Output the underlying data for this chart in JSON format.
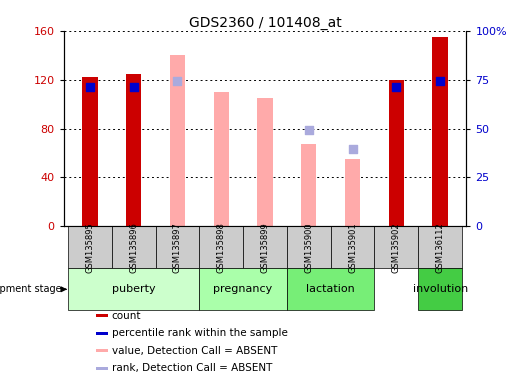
{
  "title": "GDS2360 / 101408_at",
  "samples": [
    "GSM135895",
    "GSM135896",
    "GSM135897",
    "GSM135898",
    "GSM135899",
    "GSM135900",
    "GSM135901",
    "GSM135902",
    "GSM136112"
  ],
  "count_values": [
    122,
    125,
    null,
    null,
    null,
    null,
    null,
    120,
    155
  ],
  "count_color": "#cc0000",
  "percentile_rank": [
    114,
    114,
    null,
    null,
    null,
    null,
    null,
    114,
    119
  ],
  "percentile_rank_color": "#0000cc",
  "value_absent": [
    null,
    null,
    140,
    110,
    105,
    67,
    55,
    null,
    null
  ],
  "value_absent_color": "#ffaaaa",
  "rank_absent": [
    null,
    null,
    119,
    null,
    null,
    79,
    63,
    null,
    null
  ],
  "rank_absent_color": "#aaaadd",
  "ylim_left": [
    0,
    160
  ],
  "ylim_right": [
    0,
    100
  ],
  "yticks_left": [
    0,
    40,
    80,
    120,
    160
  ],
  "yticks_right": [
    0,
    25,
    50,
    75,
    100
  ],
  "yticklabels_right": [
    "0",
    "25",
    "50",
    "75",
    "100%"
  ],
  "bar_width": 0.35,
  "grid_color": "#000000",
  "bg_color": "#ffffff",
  "stage_defs": [
    {
      "label": "puberty",
      "start": 0,
      "end": 2,
      "color": "#ccffcc"
    },
    {
      "label": "pregnancy",
      "start": 3,
      "end": 4,
      "color": "#aaffaa"
    },
    {
      "label": "lactation",
      "start": 5,
      "end": 6,
      "color": "#77ee77"
    },
    {
      "label": "involution",
      "start": 8,
      "end": 8,
      "color": "#44cc44"
    }
  ],
  "legend_items": [
    {
      "label": "count",
      "color": "#cc0000"
    },
    {
      "label": "percentile rank within the sample",
      "color": "#0000cc"
    },
    {
      "label": "value, Detection Call = ABSENT",
      "color": "#ffaaaa"
    },
    {
      "label": "rank, Detection Call = ABSENT",
      "color": "#aaaadd"
    }
  ]
}
